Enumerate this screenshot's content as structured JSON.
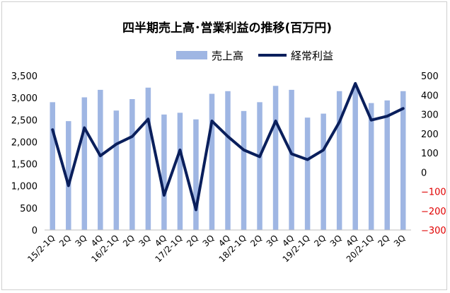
{
  "chart_data": {
    "type": "bar",
    "title": "四半期売上高･営業利益の推移(百万円)",
    "categories": [
      "15/2-1Q",
      "2Q",
      "3Q",
      "4Q",
      "16/2-1Q",
      "2Q",
      "3Q",
      "4Q",
      "17/2-1Q",
      "2Q",
      "3Q",
      "4Q",
      "18/2-1Q",
      "2Q",
      "3Q",
      "4Q",
      "19/2-1Q",
      "2Q",
      "3Q",
      "4Q",
      "20/2-1Q",
      "2Q",
      "3Q"
    ],
    "series": [
      {
        "name": "売上高",
        "type": "bar",
        "axis": "left",
        "color": "#9fb6e3",
        "values": [
          2900,
          2470,
          3010,
          3180,
          2710,
          2970,
          3230,
          2620,
          2660,
          2510,
          3090,
          3150,
          2700,
          2900,
          3270,
          3180,
          2550,
          2640,
          3150,
          3260,
          2880,
          2940,
          3150
        ]
      },
      {
        "name": "経常利益",
        "type": "line",
        "axis": "right",
        "color": "#0a1f5c",
        "values": [
          220,
          -70,
          230,
          85,
          145,
          185,
          275,
          -120,
          115,
          -195,
          265,
          185,
          115,
          80,
          265,
          95,
          65,
          115,
          260,
          460,
          270,
          290,
          330
        ]
      }
    ],
    "left_axis": {
      "min": 0,
      "max": 3500,
      "step": 500,
      "tick_labels": [
        "0",
        "500",
        "1,000",
        "1,500",
        "2,000",
        "2,500",
        "3,000",
        "3,500"
      ],
      "color": "#000000"
    },
    "right_axis": {
      "min": -300,
      "max": 500,
      "step": 100,
      "tick_labels": [
        "−300",
        "−200",
        "−100",
        "0",
        "100",
        "200",
        "300",
        "400",
        "500"
      ],
      "color": "#000000",
      "negative_color": "#e00000"
    },
    "legend": {
      "placement": "top-center",
      "items": [
        "売上高",
        "経常利益"
      ]
    },
    "grid": false
  }
}
